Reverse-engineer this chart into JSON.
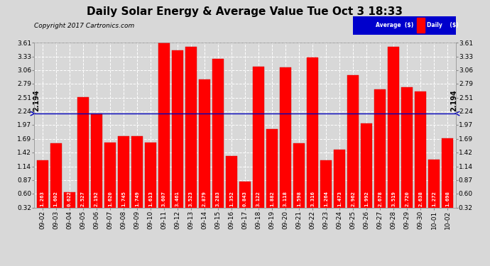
{
  "title": "Daily Solar Energy & Average Value Tue Oct 3 18:33",
  "copyright": "Copyright 2017 Cartronics.com",
  "average_line": 2.194,
  "average_label": "2.194",
  "categories": [
    "09-02",
    "09-03",
    "09-04",
    "09-05",
    "09-06",
    "09-07",
    "09-08",
    "09-09",
    "09-10",
    "09-11",
    "09-12",
    "09-13",
    "09-14",
    "09-15",
    "09-16",
    "09-17",
    "09-18",
    "09-19",
    "09-20",
    "09-21",
    "09-22",
    "09-23",
    "09-24",
    "09-25",
    "09-26",
    "09-27",
    "09-28",
    "09-29",
    "09-30",
    "10-01",
    "10-02"
  ],
  "values": [
    1.263,
    1.602,
    0.622,
    2.527,
    2.192,
    1.62,
    1.745,
    1.749,
    1.613,
    3.607,
    3.461,
    3.523,
    2.879,
    3.283,
    1.352,
    0.843,
    3.122,
    1.882,
    3.118,
    1.598,
    3.316,
    1.264,
    1.473,
    2.962,
    1.992,
    2.678,
    3.519,
    2.72,
    2.638,
    1.272,
    1.698
  ],
  "bar_color": "#ff0000",
  "bar_edge_color": "#cc0000",
  "average_line_color": "#0000bb",
  "ylim_min": 0.32,
  "ylim_max": 3.61,
  "yticks": [
    0.32,
    0.6,
    0.87,
    1.14,
    1.42,
    1.69,
    1.97,
    2.24,
    2.51,
    2.79,
    3.06,
    3.33,
    3.61
  ],
  "background_color": "#d8d8d8",
  "grid_color": "#ffffff",
  "legend_avg_color": "#0000cc",
  "legend_daily_color": "#ff0000",
  "title_fontsize": 11,
  "copyright_fontsize": 6.5,
  "bar_label_fontsize": 5.2,
  "tick_label_fontsize": 6.5,
  "avg_label_fontsize": 7.0
}
